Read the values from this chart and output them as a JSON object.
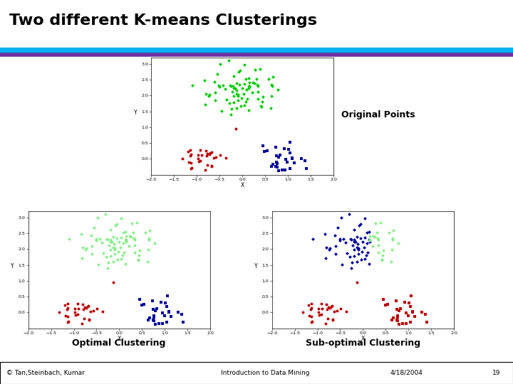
{
  "title": "Two different K-means Clusterings",
  "title_fontsize": 16,
  "title_fontweight": "bold",
  "bg_color": "#ffffff",
  "header_line1_color": "#00b0f0",
  "header_line2_color": "#7030a0",
  "label_original": "Original Points",
  "label_optimal": "Optimal Clustering",
  "label_suboptimal": "Sub-optimal Clustering",
  "footer_left": "© Tan,Steinbach, Kumar",
  "footer_center": "Introduction to Data Mining",
  "footer_right": "4/18/2004",
  "footer_page": "19",
  "cluster1_color": "#00cc00",
  "cluster2_color": "#bb0000",
  "cluster3_color": "#000099",
  "cluster1_color_light": "#88ee88",
  "seed": 42,
  "n1": 80,
  "n2": 30,
  "n3": 30,
  "c1_x": 0.0,
  "c1_y": 2.2,
  "c2_x": -0.9,
  "c2_y": 0.0,
  "c3_x": 0.9,
  "c3_y": 0.0,
  "c1_sx": 0.42,
  "c1_sy": 0.42,
  "c2_sx": 0.28,
  "c2_sy": 0.25,
  "c3_sx": 0.22,
  "c3_sy": 0.25,
  "xlim": [
    -2.0,
    2.0
  ],
  "ylim": [
    -0.5,
    3.2
  ],
  "xlabel": "X",
  "ylabel": "Y",
  "xticks": [
    -2,
    -1.5,
    -1,
    -0.5,
    0,
    0.5,
    1,
    1.5,
    2
  ],
  "yticks": [
    0,
    0.5,
    1,
    1.5,
    2,
    2.5,
    3
  ]
}
